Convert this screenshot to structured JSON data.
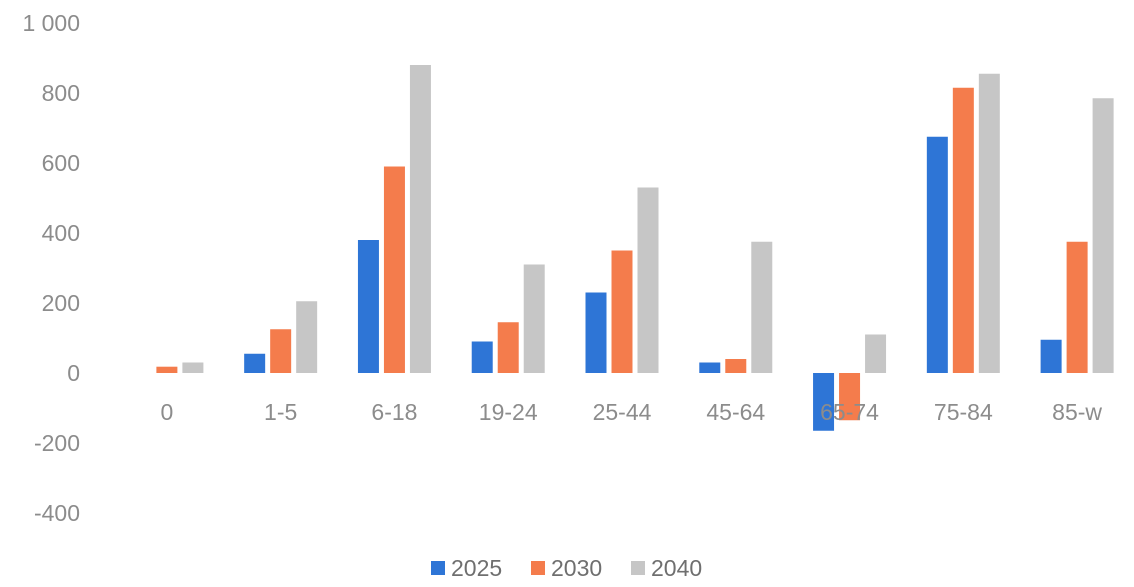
{
  "chart_data": {
    "type": "bar",
    "categories": [
      "0",
      "1-5",
      "6-18",
      "19-24",
      "25-44",
      "45-64",
      "65-74",
      "75-84",
      "85-w"
    ],
    "series": [
      {
        "name": "2025",
        "color": "#2e75d6",
        "values": [
          0,
          55,
          380,
          90,
          230,
          30,
          -165,
          675,
          95
        ]
      },
      {
        "name": "2030",
        "color": "#f47c4c",
        "values": [
          18,
          125,
          590,
          145,
          350,
          40,
          -135,
          815,
          375
        ]
      },
      {
        "name": "2040",
        "color": "#c6c6c6",
        "values": [
          30,
          205,
          880,
          310,
          530,
          375,
          110,
          855,
          785
        ]
      }
    ],
    "ylim": [
      -400,
      1000
    ],
    "yticks": [
      -400,
      -200,
      0,
      200,
      400,
      600,
      800,
      1000
    ],
    "ytick_labels": [
      "-400",
      "-200",
      "0",
      "200",
      "400",
      "600",
      "800",
      "1 000"
    ],
    "grid": false,
    "legend": "bottom"
  }
}
